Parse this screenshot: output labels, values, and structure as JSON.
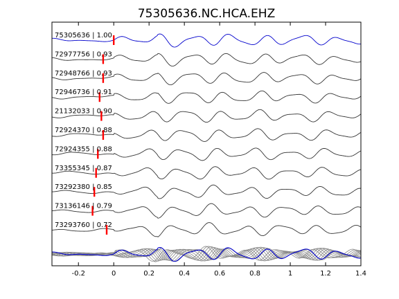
{
  "chart_data": {
    "type": "line",
    "title": "75305636.NC.HCA.EHZ",
    "xlabel": "",
    "ylabel": "",
    "xlim": [
      -0.35,
      1.4
    ],
    "xticks": [
      "-0.2",
      "0",
      "0.2",
      "0.4",
      "0.6",
      "0.8",
      "1",
      "1.2",
      "1.4"
    ],
    "grid": false,
    "colors": {
      "reference": "#0000cc",
      "trace": "#333333",
      "pick": "#ff0000",
      "stack": "#888888"
    },
    "series": [
      {
        "label": "75305636 | 1.00",
        "pick": 0.0
      },
      {
        "label": "72977756 | 0.93",
        "pick": -0.06
      },
      {
        "label": "72948766 | 0.93",
        "pick": -0.06
      },
      {
        "label": "72946736 | 0.91",
        "pick": -0.08
      },
      {
        "label": "21132033 | 0.90",
        "pick": -0.07
      },
      {
        "label": "72924370 | 0.88",
        "pick": -0.06
      },
      {
        "label": "72924355 | 0.88",
        "pick": -0.09
      },
      {
        "label": "73355345 | 0.87",
        "pick": -0.1
      },
      {
        "label": "73292380 | 0.85",
        "pick": -0.11
      },
      {
        "label": "73136146 | 0.79",
        "pick": -0.12
      },
      {
        "label": "73293760 | 0.72",
        "pick": -0.04
      }
    ]
  }
}
